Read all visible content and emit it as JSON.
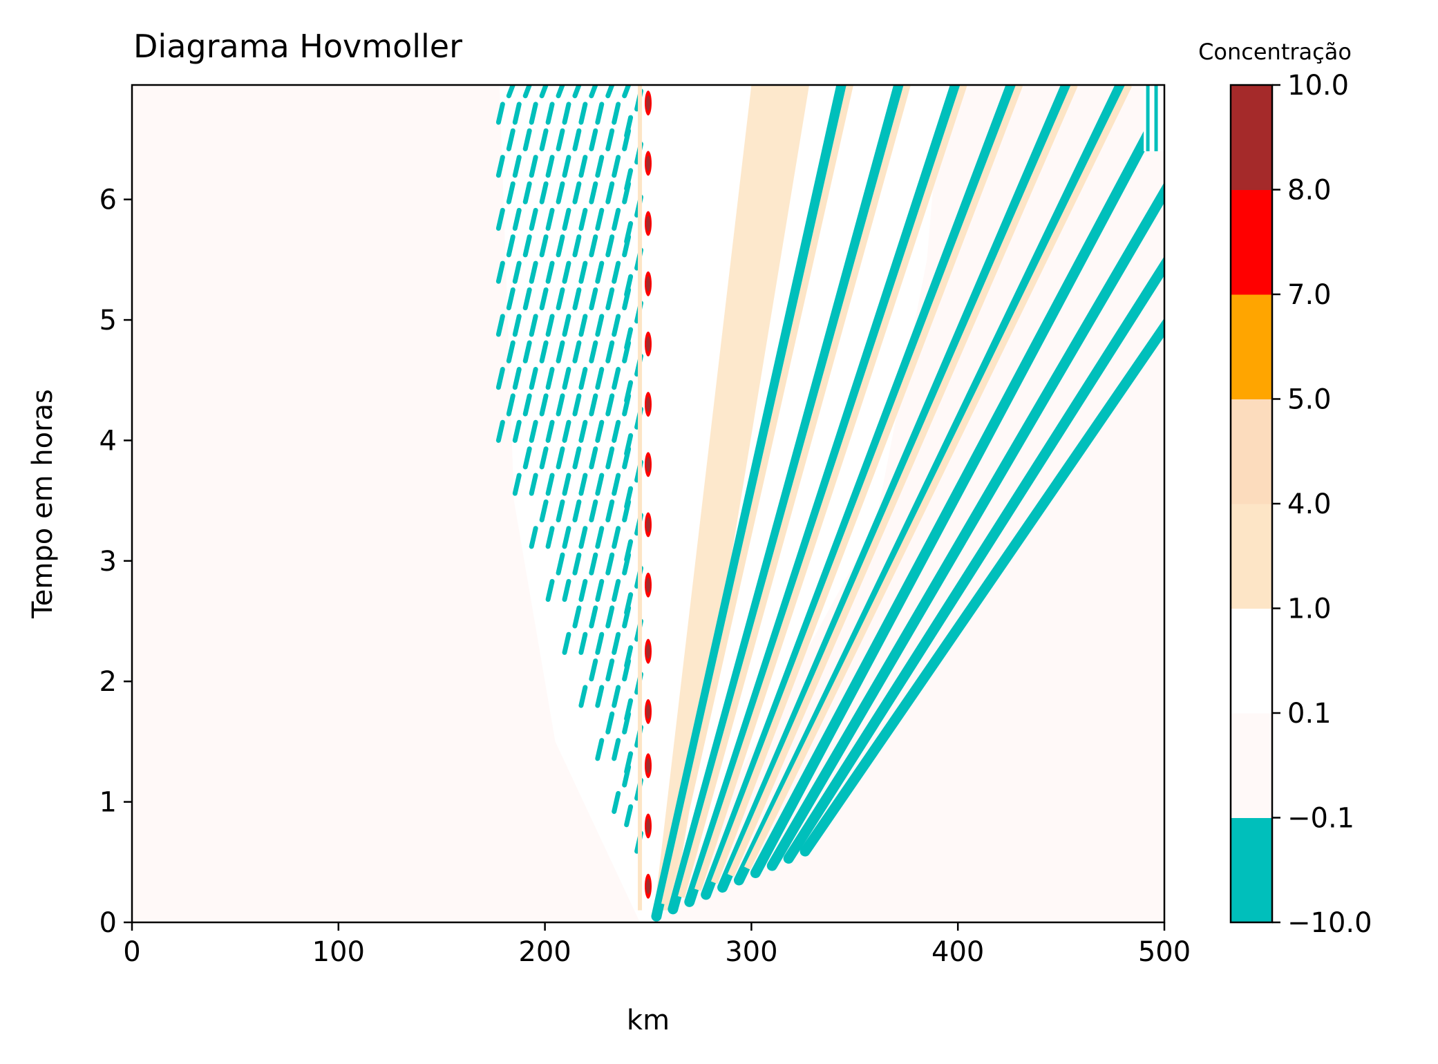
{
  "chart_data": {
    "type": "heatmap",
    "title": "Diagrama Hovmoller",
    "xlabel": "km",
    "ylabel": "Tempo em horas",
    "xlim": [
      0,
      500
    ],
    "ylim": [
      0,
      6.95
    ],
    "xticks": [
      0,
      100,
      200,
      300,
      400,
      500
    ],
    "yticks": [
      0,
      1,
      2,
      3,
      4,
      5,
      6
    ],
    "grid": false,
    "background_color": "#fff9f8",
    "colorbar": {
      "label": "Concentração",
      "levels": [
        -10.0,
        -0.1,
        0.1,
        1.0,
        4.0,
        5.0,
        7.0,
        8.0,
        10.0
      ],
      "tick_labels": [
        "−10.0",
        "−0.1",
        "0.1",
        "1.0",
        "4.0",
        "5.0",
        "7.0",
        "8.0",
        "10.0"
      ],
      "band_colors": [
        "#00bfbb",
        "#fff9f8",
        "#ffffff",
        "#fde5c6",
        "#fcdcbd",
        "#ffa500",
        "#ff0000",
        "#a52a2a"
      ]
    },
    "features": {
      "source_x_km": 250,
      "stripe_colors": {
        "negative": "#00bfbb",
        "light": "#fde5c6",
        "peak": "#a52a2a",
        "red": "#ff0000"
      },
      "front_right": [
        [
          255,
          0
        ],
        [
          360,
          3.3
        ],
        [
          385,
          5.5
        ],
        [
          390,
          6.5
        ],
        [
          400,
          6.95
        ]
      ],
      "front_left": [
        [
          246,
          0
        ],
        [
          205,
          1.5
        ],
        [
          185,
          3.5
        ],
        [
          178,
          6.95
        ]
      ],
      "diagonal_stripe_start_km": [
        254,
        262,
        270,
        278,
        286,
        294,
        302,
        310,
        318,
        326
      ],
      "diagonal_stripe_speed_km_per_h": [
        13,
        16,
        19,
        22,
        25,
        28,
        31,
        34,
        37,
        40
      ],
      "dash_column_km": [
        180,
        188,
        196,
        204,
        212,
        220,
        228,
        236,
        242
      ],
      "source_blob_times_h": [
        0.3,
        0.8,
        1.3,
        1.75,
        2.25,
        2.8,
        3.3,
        3.8,
        4.3,
        4.8,
        5.3,
        5.8,
        6.3,
        6.8
      ],
      "edge_patch": {
        "x_range": [
          490,
          500
        ],
        "t_range": [
          6.4,
          6.95
        ]
      }
    }
  }
}
